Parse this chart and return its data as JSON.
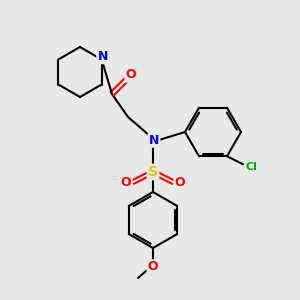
{
  "background_color": "#e8e8e8",
  "title": "",
  "atoms": {
    "N": {
      "color": "#0000ff"
    },
    "O": {
      "color": "#ff0000"
    },
    "S": {
      "color": "#cccc00"
    },
    "Cl": {
      "color": "#00aa00"
    },
    "C": {
      "color": "#000000"
    }
  },
  "figsize": [
    3.0,
    3.0
  ],
  "dpi": 100
}
